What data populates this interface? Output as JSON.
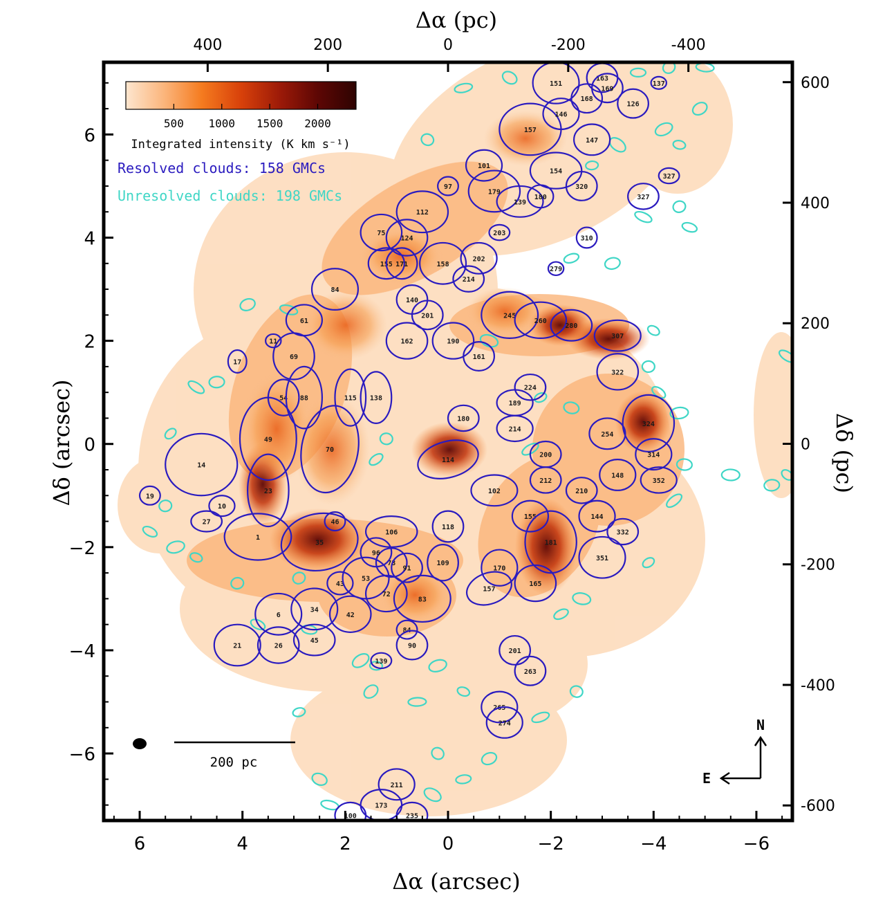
{
  "chart_data": {
    "type": "scatter",
    "title": "",
    "xlabel_bottom": "Δα (arcsec)",
    "xlabel_top": "Δα (pc)",
    "ylabel_left": "Δδ (arcsec)",
    "ylabel_right": "Δδ (pc)",
    "xlim_arcsec": [
      6.7,
      -6.7
    ],
    "ylim_arcsec": [
      -7.3,
      7.4
    ],
    "xlim_pc": [
      573,
      -573
    ],
    "ylim_pc": [
      -625,
      633
    ],
    "x_ticks_arcsec": [
      6,
      4,
      2,
      0,
      -2,
      -4,
      -6
    ],
    "x_tick_labels_arcsec": [
      "6",
      "4",
      "2",
      "0",
      "−2",
      "−4",
      "−6"
    ],
    "y_ticks_arcsec": [
      6,
      4,
      2,
      0,
      -2,
      -4,
      -6
    ],
    "y_tick_labels_arcsec": [
      "6",
      "4",
      "2",
      "0",
      "−2",
      "−4",
      "−6"
    ],
    "x_ticks_pc": [
      400,
      200,
      0,
      -200,
      -400
    ],
    "x_tick_labels_pc": [
      "400",
      "200",
      "0",
      "-200",
      "-400"
    ],
    "y_ticks_pc": [
      600,
      400,
      200,
      0,
      -200,
      -400,
      -600
    ],
    "y_tick_labels_pc": [
      "600",
      "400",
      "200",
      "0",
      "-200",
      "-400",
      "-600"
    ],
    "colorbar": {
      "label": "Integrated intensity (K km s⁻¹)",
      "ticks": [
        500,
        1000,
        1500,
        2000
      ],
      "tick_labels": [
        "500",
        "1000",
        "1500",
        "2000"
      ],
      "range": [
        0,
        2400
      ],
      "colors": [
        "#fde6cf",
        "#fbb47a",
        "#f57b1f",
        "#d8410a",
        "#9c1a08",
        "#5e0704",
        "#2e0302"
      ]
    },
    "legend": [
      {
        "label": "Resolved clouds: 158 GMCs",
        "color": "#2a1bbf"
      },
      {
        "label": "Unresolved clouds: 198 GMCs",
        "color": "#3fd6c6"
      }
    ],
    "scale_bar_label": "200 pc",
    "compass": {
      "north": "N",
      "east": "E"
    },
    "resolved_clouds": [
      {
        "id": "14",
        "x": 4.8,
        "y": -0.4,
        "a": 0.7,
        "b": 0.6,
        "pa": 0
      },
      {
        "id": "19",
        "x": 5.8,
        "y": -1.0,
        "a": 0.2,
        "b": 0.18,
        "pa": 0
      },
      {
        "id": "10",
        "x": 4.4,
        "y": -1.2,
        "a": 0.25,
        "b": 0.2,
        "pa": 0
      },
      {
        "id": "27",
        "x": 4.7,
        "y": -1.5,
        "a": 0.3,
        "b": 0.2,
        "pa": 0
      },
      {
        "id": "21",
        "x": 4.1,
        "y": -3.9,
        "a": 0.45,
        "b": 0.4,
        "pa": 0
      },
      {
        "id": "26",
        "x": 3.3,
        "y": -3.9,
        "a": 0.4,
        "b": 0.35,
        "pa": 0
      },
      {
        "id": "6",
        "x": 3.3,
        "y": -3.3,
        "a": 0.45,
        "b": 0.4,
        "pa": 0
      },
      {
        "id": "34",
        "x": 2.6,
        "y": -3.2,
        "a": 0.45,
        "b": 0.4,
        "pa": 0
      },
      {
        "id": "45",
        "x": 2.6,
        "y": -3.8,
        "a": 0.4,
        "b": 0.3,
        "pa": 0
      },
      {
        "id": "42",
        "x": 1.9,
        "y": -3.3,
        "a": 0.4,
        "b": 0.35,
        "pa": 0
      },
      {
        "id": "43",
        "x": 2.1,
        "y": -2.7,
        "a": 0.25,
        "b": 0.22,
        "pa": 0
      },
      {
        "id": "53",
        "x": 1.6,
        "y": -2.6,
        "a": 0.45,
        "b": 0.4,
        "pa": 0
      },
      {
        "id": "72",
        "x": 1.2,
        "y": -2.9,
        "a": 0.4,
        "b": 0.35,
        "pa": 0
      },
      {
        "id": "73",
        "x": 1.1,
        "y": -2.3,
        "a": 0.3,
        "b": 0.28,
        "pa": 0
      },
      {
        "id": "96",
        "x": 1.4,
        "y": -2.1,
        "a": 0.3,
        "b": 0.28,
        "pa": 0
      },
      {
        "id": "91",
        "x": 0.8,
        "y": -2.4,
        "a": 0.3,
        "b": 0.28,
        "pa": 0
      },
      {
        "id": "83",
        "x": 0.5,
        "y": -3.0,
        "a": 0.55,
        "b": 0.45,
        "pa": 0
      },
      {
        "id": "84",
        "x": 0.8,
        "y": -3.6,
        "a": 0.2,
        "b": 0.18,
        "pa": 0
      },
      {
        "id": "90",
        "x": 0.7,
        "y": -3.9,
        "a": 0.3,
        "b": 0.28,
        "pa": 0
      },
      {
        "id": "109",
        "x": 0.1,
        "y": -2.3,
        "a": 0.3,
        "b": 0.35,
        "pa": 0
      },
      {
        "id": "106",
        "x": 1.1,
        "y": -1.7,
        "a": 0.5,
        "b": 0.3,
        "pa": 0
      },
      {
        "id": "118",
        "x": 0.0,
        "y": -1.6,
        "a": 0.3,
        "b": 0.3,
        "pa": 0
      },
      {
        "id": "139",
        "x": 1.3,
        "y": -4.2,
        "a": 0.2,
        "b": 0.15,
        "pa": 0
      },
      {
        "id": "35",
        "x": 2.5,
        "y": -1.9,
        "a": 0.75,
        "b": 0.55,
        "pa": -10
      },
      {
        "id": "1",
        "x": 3.7,
        "y": -1.8,
        "a": 0.65,
        "b": 0.45,
        "pa": 0
      },
      {
        "id": "46",
        "x": 2.2,
        "y": -1.5,
        "a": 0.2,
        "b": 0.18,
        "pa": 0
      },
      {
        "id": "23",
        "x": 3.5,
        "y": -0.9,
        "a": 0.4,
        "b": 0.7,
        "pa": 0
      },
      {
        "id": "49",
        "x": 3.5,
        "y": 0.1,
        "a": 0.55,
        "b": 0.8,
        "pa": 0
      },
      {
        "id": "70",
        "x": 2.3,
        "y": -0.1,
        "a": 0.55,
        "b": 0.85,
        "pa": 10
      },
      {
        "id": "54",
        "x": 3.2,
        "y": 0.9,
        "a": 0.3,
        "b": 0.35,
        "pa": 0
      },
      {
        "id": "88",
        "x": 2.8,
        "y": 0.9,
        "a": 0.35,
        "b": 0.6,
        "pa": 0
      },
      {
        "id": "115",
        "x": 1.9,
        "y": 0.9,
        "a": 0.3,
        "b": 0.55,
        "pa": 0
      },
      {
        "id": "138",
        "x": 1.4,
        "y": 0.9,
        "a": 0.3,
        "b": 0.5,
        "pa": 0
      },
      {
        "id": "69",
        "x": 3.0,
        "y": 1.7,
        "a": 0.4,
        "b": 0.45,
        "pa": 0
      },
      {
        "id": "11",
        "x": 3.4,
        "y": 2.0,
        "a": 0.15,
        "b": 0.13,
        "pa": 0
      },
      {
        "id": "17",
        "x": 4.1,
        "y": 1.6,
        "a": 0.18,
        "b": 0.22,
        "pa": 0
      },
      {
        "id": "61",
        "x": 2.8,
        "y": 2.4,
        "a": 0.35,
        "b": 0.3,
        "pa": 0
      },
      {
        "id": "84b",
        "label": "84",
        "x": 2.2,
        "y": 3.0,
        "a": 0.45,
        "b": 0.4,
        "pa": 0
      },
      {
        "id": "75",
        "x": 1.3,
        "y": 4.1,
        "a": 0.4,
        "b": 0.35,
        "pa": 0
      },
      {
        "id": "124",
        "x": 0.8,
        "y": 4.0,
        "a": 0.4,
        "b": 0.35,
        "pa": 0
      },
      {
        "id": "155",
        "x": 1.2,
        "y": 3.5,
        "a": 0.35,
        "b": 0.3,
        "pa": 0
      },
      {
        "id": "171",
        "x": 0.9,
        "y": 3.5,
        "a": 0.3,
        "b": 0.3,
        "pa": 0
      },
      {
        "id": "158",
        "x": 0.1,
        "y": 3.5,
        "a": 0.45,
        "b": 0.4,
        "pa": 0
      },
      {
        "id": "140",
        "x": 0.7,
        "y": 2.8,
        "a": 0.3,
        "b": 0.28,
        "pa": 0
      },
      {
        "id": "201",
        "x": 0.4,
        "y": 2.5,
        "a": 0.3,
        "b": 0.28,
        "pa": 0
      },
      {
        "id": "190",
        "x": -0.1,
        "y": 2.0,
        "a": 0.4,
        "b": 0.35,
        "pa": 0
      },
      {
        "id": "162",
        "x": 0.8,
        "y": 2.0,
        "a": 0.4,
        "b": 0.35,
        "pa": 0
      },
      {
        "id": "161",
        "x": -0.6,
        "y": 1.7,
        "a": 0.3,
        "b": 0.28,
        "pa": 0
      },
      {
        "id": "112",
        "x": 0.5,
        "y": 4.5,
        "a": 0.5,
        "b": 0.4,
        "pa": 0
      },
      {
        "id": "97",
        "x": 0.0,
        "y": 5.0,
        "a": 0.2,
        "b": 0.18,
        "pa": 0
      },
      {
        "id": "179",
        "x": -0.9,
        "y": 4.9,
        "a": 0.5,
        "b": 0.4,
        "pa": 0
      },
      {
        "id": "101",
        "x": -0.7,
        "y": 5.4,
        "a": 0.35,
        "b": 0.3,
        "pa": 0
      },
      {
        "id": "139b",
        "label": "139",
        "x": -1.4,
        "y": 4.7,
        "a": 0.45,
        "b": 0.3,
        "pa": 0
      },
      {
        "id": "180",
        "x": -1.8,
        "y": 4.8,
        "a": 0.25,
        "b": 0.22,
        "pa": 0
      },
      {
        "id": "214",
        "x": -0.4,
        "y": 3.2,
        "a": 0.3,
        "b": 0.25,
        "pa": 0
      },
      {
        "id": "202",
        "x": -0.6,
        "y": 3.6,
        "a": 0.35,
        "b": 0.3,
        "pa": 0
      },
      {
        "id": "203",
        "x": -1.0,
        "y": 4.1,
        "a": 0.2,
        "b": 0.15,
        "pa": 0
      },
      {
        "id": "157",
        "x": -1.6,
        "y": 6.1,
        "a": 0.6,
        "b": 0.5,
        "pa": 0
      },
      {
        "id": "146",
        "x": -2.2,
        "y": 6.4,
        "a": 0.35,
        "b": 0.3,
        "pa": 0
      },
      {
        "id": "151",
        "x": -2.1,
        "y": 7.0,
        "a": 0.45,
        "b": 0.4,
        "pa": 0
      },
      {
        "id": "163",
        "x": -3.0,
        "y": 7.1,
        "a": 0.3,
        "b": 0.28,
        "pa": 0
      },
      {
        "id": "169",
        "x": -3.1,
        "y": 6.9,
        "a": 0.3,
        "b": 0.28,
        "pa": 0
      },
      {
        "id": "168",
        "x": -2.7,
        "y": 6.7,
        "a": 0.3,
        "b": 0.28,
        "pa": 0
      },
      {
        "id": "147",
        "x": -2.8,
        "y": 5.9,
        "a": 0.35,
        "b": 0.3,
        "pa": 0
      },
      {
        "id": "154",
        "x": -2.1,
        "y": 5.3,
        "a": 0.5,
        "b": 0.35,
        "pa": 0
      },
      {
        "id": "126",
        "x": -3.6,
        "y": 6.6,
        "a": 0.3,
        "b": 0.28,
        "pa": 0
      },
      {
        "id": "137",
        "x": -4.1,
        "y": 7.0,
        "a": 0.15,
        "b": 0.12,
        "pa": 0
      },
      {
        "id": "320",
        "x": -2.6,
        "y": 5.0,
        "a": 0.3,
        "b": 0.28,
        "pa": 0
      },
      {
        "id": "327",
        "x": -3.8,
        "y": 4.8,
        "a": 0.3,
        "b": 0.25,
        "pa": 0
      },
      {
        "id": "327b",
        "label": "327",
        "x": -4.3,
        "y": 5.2,
        "a": 0.2,
        "b": 0.15,
        "pa": 0
      },
      {
        "id": "310",
        "x": -2.7,
        "y": 4.0,
        "a": 0.2,
        "b": 0.2,
        "pa": 0
      },
      {
        "id": "279",
        "x": -2.1,
        "y": 3.4,
        "a": 0.15,
        "b": 0.13,
        "pa": 0
      },
      {
        "id": "245",
        "x": -1.2,
        "y": 2.5,
        "a": 0.55,
        "b": 0.45,
        "pa": 0
      },
      {
        "id": "260",
        "x": -1.8,
        "y": 2.4,
        "a": 0.5,
        "b": 0.35,
        "pa": 0
      },
      {
        "id": "280",
        "x": -2.4,
        "y": 2.3,
        "a": 0.4,
        "b": 0.3,
        "pa": 0
      },
      {
        "id": "307",
        "x": -3.3,
        "y": 2.1,
        "a": 0.45,
        "b": 0.3,
        "pa": 0
      },
      {
        "id": "322",
        "x": -3.3,
        "y": 1.4,
        "a": 0.4,
        "b": 0.35,
        "pa": 0
      },
      {
        "id": "324",
        "x": -3.9,
        "y": 0.4,
        "a": 0.5,
        "b": 0.55,
        "pa": 0
      },
      {
        "id": "254",
        "x": -3.1,
        "y": 0.2,
        "a": 0.35,
        "b": 0.3,
        "pa": 0
      },
      {
        "id": "314",
        "x": -4.0,
        "y": -0.2,
        "a": 0.35,
        "b": 0.3,
        "pa": 0
      },
      {
        "id": "224",
        "x": -1.6,
        "y": 1.1,
        "a": 0.3,
        "b": 0.25,
        "pa": 0
      },
      {
        "id": "189",
        "x": -1.3,
        "y": 0.8,
        "a": 0.35,
        "b": 0.25,
        "pa": 0
      },
      {
        "id": "214b",
        "label": "214",
        "x": -1.3,
        "y": 0.3,
        "a": 0.35,
        "b": 0.25,
        "pa": 0
      },
      {
        "id": "180b",
        "label": "180",
        "x": -0.3,
        "y": 0.5,
        "a": 0.3,
        "b": 0.25,
        "pa": 0
      },
      {
        "id": "114",
        "x": 0.0,
        "y": -0.3,
        "a": 0.6,
        "b": 0.35,
        "pa": -15
      },
      {
        "id": "102",
        "x": -0.9,
        "y": -0.9,
        "a": 0.45,
        "b": 0.3,
        "pa": 0
      },
      {
        "id": "200",
        "x": -1.9,
        "y": -0.2,
        "a": 0.3,
        "b": 0.25,
        "pa": 0
      },
      {
        "id": "212",
        "x": -1.9,
        "y": -0.7,
        "a": 0.3,
        "b": 0.25,
        "pa": 0
      },
      {
        "id": "210",
        "x": -2.6,
        "y": -0.9,
        "a": 0.3,
        "b": 0.25,
        "pa": 0
      },
      {
        "id": "155b",
        "label": "155",
        "x": -1.6,
        "y": -1.4,
        "a": 0.35,
        "b": 0.3,
        "pa": 0
      },
      {
        "id": "181",
        "x": -2.0,
        "y": -1.9,
        "a": 0.5,
        "b": 0.6,
        "pa": 0
      },
      {
        "id": "170",
        "x": -1.0,
        "y": -2.4,
        "a": 0.35,
        "b": 0.35,
        "pa": 0
      },
      {
        "id": "165",
        "x": -1.7,
        "y": -2.7,
        "a": 0.4,
        "b": 0.35,
        "pa": 0
      },
      {
        "id": "157b",
        "label": "157",
        "x": -0.8,
        "y": -2.8,
        "a": 0.45,
        "b": 0.3,
        "pa": -20
      },
      {
        "id": "148",
        "x": -3.3,
        "y": -0.6,
        "a": 0.35,
        "b": 0.3,
        "pa": 0
      },
      {
        "id": "144",
        "x": -2.9,
        "y": -1.4,
        "a": 0.35,
        "b": 0.3,
        "pa": 0
      },
      {
        "id": "352",
        "x": -4.1,
        "y": -0.7,
        "a": 0.35,
        "b": 0.25,
        "pa": 0
      },
      {
        "id": "332",
        "x": -3.4,
        "y": -1.7,
        "a": 0.3,
        "b": 0.25,
        "pa": 0
      },
      {
        "id": "351",
        "x": -3.0,
        "y": -2.2,
        "a": 0.45,
        "b": 0.4,
        "pa": 0
      },
      {
        "id": "201b",
        "label": "201",
        "x": -1.3,
        "y": -4.0,
        "a": 0.3,
        "b": 0.28,
        "pa": 0
      },
      {
        "id": "263",
        "x": -1.6,
        "y": -4.4,
        "a": 0.3,
        "b": 0.28,
        "pa": 0
      },
      {
        "id": "265",
        "x": -1.0,
        "y": -5.1,
        "a": 0.35,
        "b": 0.3,
        "pa": 0
      },
      {
        "id": "274",
        "x": -1.1,
        "y": -5.4,
        "a": 0.35,
        "b": 0.3,
        "pa": 0
      },
      {
        "id": "211",
        "x": 1.0,
        "y": -6.6,
        "a": 0.35,
        "b": 0.3,
        "pa": 0
      },
      {
        "id": "173",
        "x": 1.3,
        "y": -7.0,
        "a": 0.4,
        "b": 0.3,
        "pa": 0
      },
      {
        "id": "235",
        "x": 0.7,
        "y": -7.2,
        "a": 0.3,
        "b": 0.25,
        "pa": 0
      },
      {
        "id": "100",
        "x": 1.9,
        "y": -7.2,
        "a": 0.3,
        "b": 0.25,
        "pa": 0
      }
    ],
    "unresolved_clouds": [
      {
        "x": 5.4,
        "y": 0.2
      },
      {
        "x": 4.5,
        "y": 1.2
      },
      {
        "x": 4.9,
        "y": 1.1
      },
      {
        "x": 5.5,
        "y": -1.2
      },
      {
        "x": 5.8,
        "y": -1.7
      },
      {
        "x": 5.3,
        "y": -2.0
      },
      {
        "x": 4.9,
        "y": -2.2
      },
      {
        "x": 3.9,
        "y": 2.7
      },
      {
        "x": 3.1,
        "y": 2.6
      },
      {
        "x": 2.9,
        "y": -2.6
      },
      {
        "x": 2.7,
        "y": -3.6
      },
      {
        "x": 1.7,
        "y": -4.2
      },
      {
        "x": 1.4,
        "y": -4.3
      },
      {
        "x": 1.5,
        "y": -4.8
      },
      {
        "x": 0.6,
        "y": -5.0
      },
      {
        "x": 0.2,
        "y": -6.0
      },
      {
        "x": -0.3,
        "y": -6.5
      },
      {
        "x": 0.3,
        "y": -6.8
      },
      {
        "x": 2.9,
        "y": -5.2
      },
      {
        "x": 2.5,
        "y": -6.5
      },
      {
        "x": -1.8,
        "y": -5.3
      },
      {
        "x": -2.5,
        "y": -4.8
      },
      {
        "x": -2.2,
        "y": -3.3
      },
      {
        "x": -2.6,
        "y": -3.0
      },
      {
        "x": -3.9,
        "y": -2.3
      },
      {
        "x": -4.6,
        "y": -0.4
      },
      {
        "x": -4.4,
        "y": -1.1
      },
      {
        "x": -3.9,
        "y": 1.5
      },
      {
        "x": -4.1,
        "y": 1.0
      },
      {
        "x": -4.5,
        "y": 0.6
      },
      {
        "x": -4.0,
        "y": 2.2
      },
      {
        "x": -3.2,
        "y": 3.5
      },
      {
        "x": -3.8,
        "y": 4.4
      },
      {
        "x": -4.5,
        "y": 4.6
      },
      {
        "x": -4.7,
        "y": 4.2
      },
      {
        "x": -4.2,
        "y": 6.1
      },
      {
        "x": -4.5,
        "y": 5.8
      },
      {
        "x": -4.9,
        "y": 6.5
      },
      {
        "x": -5.0,
        "y": 7.3
      },
      {
        "x": -4.3,
        "y": 7.3
      },
      {
        "x": -3.7,
        "y": 7.2
      },
      {
        "x": -3.3,
        "y": 5.8
      },
      {
        "x": -2.8,
        "y": 5.4
      },
      {
        "x": -1.2,
        "y": 7.1
      },
      {
        "x": -0.3,
        "y": 6.9
      },
      {
        "x": 0.4,
        "y": 5.9
      },
      {
        "x": -2.4,
        "y": 3.6
      },
      {
        "x": -0.8,
        "y": 2.0
      },
      {
        "x": -1.8,
        "y": 0.9
      },
      {
        "x": -2.4,
        "y": 0.7
      },
      {
        "x": -1.6,
        "y": -0.1
      },
      {
        "x": 1.2,
        "y": 0.1
      },
      {
        "x": 1.4,
        "y": -0.3
      },
      {
        "x": -5.5,
        "y": -0.6
      },
      {
        "x": -6.6,
        "y": -0.6
      },
      {
        "x": -6.3,
        "y": -0.8
      },
      {
        "x": -6.6,
        "y": 1.7
      },
      {
        "x": 4.1,
        "y": -2.7
      },
      {
        "x": 3.7,
        "y": -3.5
      },
      {
        "x": 0.2,
        "y": -4.3
      },
      {
        "x": -0.3,
        "y": -4.8
      },
      {
        "x": -0.8,
        "y": -6.1
      },
      {
        "x": 2.3,
        "y": -7.0
      }
    ]
  }
}
